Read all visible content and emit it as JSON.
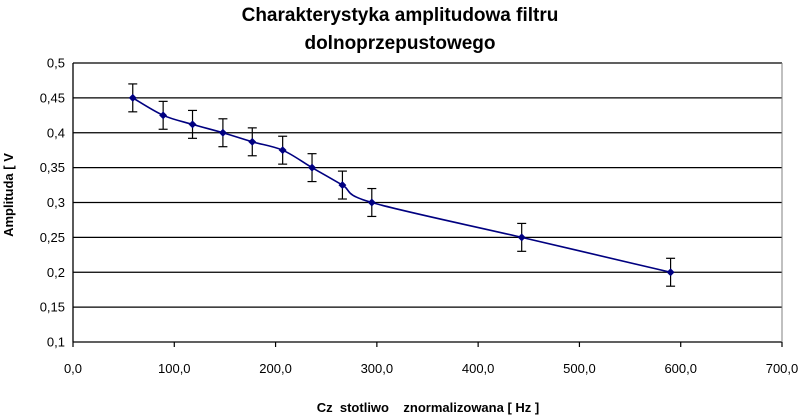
{
  "chart_data": {
    "type": "line",
    "title_lines": [
      "Charakterystyka amplitudowa filtru",
      "dolnoprzepustowego"
    ],
    "xlabel": "Cz  stotliwo    znormalizowana [ Hz ]",
    "ylabel": "Amplituda [ V",
    "xlim": [
      0,
      700
    ],
    "ylim": [
      0.1,
      0.5
    ],
    "x_ticks": [
      0,
      100,
      200,
      300,
      400,
      500,
      600,
      700
    ],
    "x_tick_labels": [
      "0,0",
      "100,0",
      "200,0",
      "300,0",
      "400,0",
      "500,0",
      "600,0",
      "700,0"
    ],
    "y_ticks": [
      0.1,
      0.15,
      0.2,
      0.25,
      0.3,
      0.35,
      0.4,
      0.45,
      0.5
    ],
    "y_tick_labels": [
      "0,1",
      "0,15",
      "0,2",
      "0,25",
      "0,3",
      "0,35",
      "0,4",
      "0,45",
      "0,5"
    ],
    "grid": "horizontal",
    "legend": "none",
    "series": [
      {
        "x": [
          59,
          89,
          118,
          148,
          177,
          207,
          236,
          266,
          295,
          443,
          590
        ],
        "y": [
          0.45,
          0.425,
          0.412,
          0.4,
          0.387,
          0.375,
          0.35,
          0.325,
          0.3,
          0.25,
          0.2
        ],
        "error": [
          0.02,
          0.02,
          0.02,
          0.02,
          0.02,
          0.02,
          0.02,
          0.02,
          0.02,
          0.02,
          0.02
        ],
        "color": "#000080"
      }
    ]
  }
}
